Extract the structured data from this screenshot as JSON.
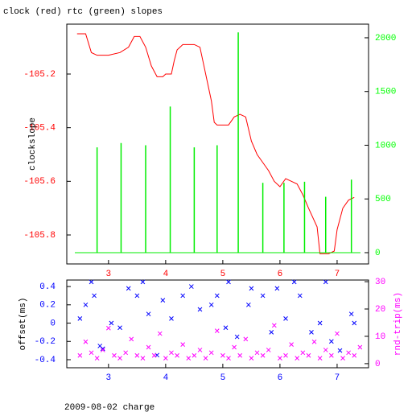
{
  "chart_data": [
    {
      "type": "line",
      "title": "clock (red) rtc (green) slopes",
      "ylabel": "clockslope",
      "xlim": [
        2.27,
        7.55
      ],
      "xticks": [
        3,
        4,
        5,
        6,
        7
      ],
      "xtick_color": "#ff0000",
      "ylim": [
        -105.908,
        -105.014
      ],
      "yticks": [
        -105.2,
        -105.4,
        -105.6,
        -105.8
      ],
      "ytick_color": "#ff0000",
      "y2lim": [
        -105,
        2127
      ],
      "y2ticks": [
        0,
        500,
        1000,
        1500,
        2000
      ],
      "y2tick_color": "#00ff00",
      "series": [
        {
          "name": "clock",
          "color": "#ff0000",
          "kind": "line",
          "x": [
            2.45,
            2.6,
            2.7,
            2.8,
            3.0,
            3.2,
            3.35,
            3.45,
            3.55,
            3.65,
            3.75,
            3.85,
            3.95,
            4.0,
            4.1,
            4.15,
            4.2,
            4.3,
            4.5,
            4.6,
            4.7,
            4.8,
            4.85,
            4.9,
            5.1,
            5.2,
            5.3,
            5.4,
            5.5,
            5.6,
            5.7,
            5.8,
            5.9,
            6.0,
            6.1,
            6.2,
            6.3,
            6.4,
            6.5,
            6.65,
            6.7,
            6.85,
            6.95,
            7.0,
            7.1,
            7.2,
            7.3
          ],
          "values": [
            -105.05,
            -105.05,
            -105.12,
            -105.13,
            -105.13,
            -105.12,
            -105.1,
            -105.06,
            -105.06,
            -105.1,
            -105.17,
            -105.21,
            -105.21,
            -105.2,
            -105.2,
            -105.15,
            -105.11,
            -105.09,
            -105.09,
            -105.1,
            -105.2,
            -105.3,
            -105.38,
            -105.39,
            -105.39,
            -105.36,
            -105.35,
            -105.36,
            -105.45,
            -105.5,
            -105.53,
            -105.56,
            -105.6,
            -105.62,
            -105.59,
            -105.6,
            -105.61,
            -105.65,
            -105.7,
            -105.77,
            -105.87,
            -105.87,
            -105.86,
            -105.78,
            -105.7,
            -105.67,
            -105.66
          ]
        },
        {
          "name": "rtc",
          "color": "#00ee00",
          "kind": "spike",
          "axis": "y2",
          "x": [
            2.8,
            3.22,
            3.65,
            4.08,
            4.5,
            4.9,
            5.27,
            5.7,
            6.07,
            6.43,
            6.8,
            7.25
          ],
          "values": [
            980,
            1020,
            1000,
            1360,
            980,
            1000,
            2050,
            650,
            650,
            660,
            520,
            680
          ]
        }
      ]
    },
    {
      "type": "scatter",
      "ylabel": "offset(ms)",
      "y2label": "rnd-trip(ms)",
      "xlim": [
        2.27,
        7.55
      ],
      "xticks": [
        3,
        4,
        5,
        6,
        7
      ],
      "xtick_color": "#0000ff",
      "ylim": [
        -0.488,
        0.471
      ],
      "yticks": [
        0.4,
        0.2,
        0,
        -0.2,
        -0.4
      ],
      "ytick_color": "#0000ff",
      "y2lim": [
        -1.5,
        30.6
      ],
      "y2ticks": [
        0,
        10,
        20,
        30
      ],
      "y2tick_color": "#ff00ff",
      "series": [
        {
          "name": "offset",
          "color": "#0000ff",
          "x": [
            2.5,
            2.6,
            2.7,
            2.75,
            2.85,
            2.9,
            3.05,
            3.2,
            3.35,
            3.5,
            3.6,
            3.7,
            3.85,
            3.95,
            4.1,
            4.3,
            4.45,
            4.6,
            4.8,
            4.9,
            5.05,
            5.1,
            5.25,
            5.45,
            5.5,
            5.7,
            5.85,
            5.95,
            6.1,
            6.25,
            6.35,
            6.55,
            6.7,
            6.8,
            6.9,
            7.05,
            7.25,
            7.3
          ],
          "values": [
            0.05,
            0.2,
            0.45,
            0.3,
            -0.25,
            -0.28,
            0.0,
            -0.05,
            0.38,
            0.3,
            0.45,
            0.1,
            -0.35,
            0.25,
            0.05,
            0.3,
            0.4,
            0.15,
            0.2,
            0.3,
            -0.05,
            0.45,
            -0.15,
            0.2,
            0.38,
            0.3,
            -0.1,
            0.38,
            0.05,
            0.45,
            0.3,
            -0.1,
            0.0,
            0.45,
            -0.2,
            -0.3,
            0.1,
            0.0
          ]
        },
        {
          "name": "rnd-trip",
          "color": "#ff00ff",
          "axis": "y2",
          "x": [
            2.5,
            2.6,
            2.7,
            2.8,
            2.9,
            3.0,
            3.1,
            3.2,
            3.3,
            3.4,
            3.5,
            3.6,
            3.7,
            3.8,
            3.9,
            4.0,
            4.1,
            4.2,
            4.3,
            4.4,
            4.5,
            4.6,
            4.7,
            4.8,
            4.9,
            5.0,
            5.1,
            5.2,
            5.3,
            5.4,
            5.5,
            5.6,
            5.7,
            5.8,
            5.9,
            6.0,
            6.1,
            6.2,
            6.3,
            6.4,
            6.5,
            6.6,
            6.7,
            6.8,
            6.9,
            7.0,
            7.1,
            7.2,
            7.3,
            7.4
          ],
          "values": [
            3,
            8,
            4,
            2,
            5,
            13,
            3,
            2,
            4,
            9,
            3,
            2,
            6,
            3,
            11,
            2,
            4,
            3,
            7,
            2,
            3,
            5,
            2,
            4,
            12,
            3,
            2,
            6,
            3,
            9,
            2,
            4,
            3,
            5,
            14,
            2,
            3,
            7,
            2,
            4,
            3,
            8,
            2,
            5,
            3,
            11,
            2,
            4,
            3,
            6
          ]
        }
      ]
    }
  ],
  "caption": "2009-08-02 charge"
}
